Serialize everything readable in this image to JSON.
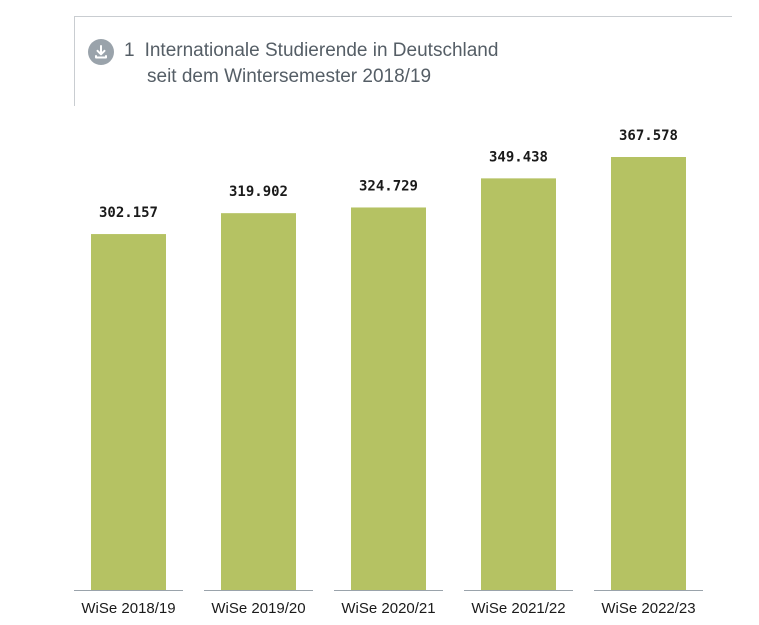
{
  "header": {
    "number": "1",
    "title_line1": "Internationale Studierende in Deutschland",
    "title_line2": "seit dem Wintersemester 2018/19",
    "icon": "download-icon"
  },
  "colors": {
    "bar": "#b5c263",
    "baseline": "#9aa3ab",
    "icon_bg": "#9aa3ab",
    "title": "#555e66"
  },
  "chart_data": {
    "type": "bar",
    "title": "Internationale Studierende in Deutschland seit dem Wintersemester 2018/19",
    "categories": [
      "WiSe 2018/19",
      "WiSe 2019/20",
      "WiSe 2020/21",
      "WiSe 2021/22",
      "WiSe 2022/23"
    ],
    "values": [
      302157,
      319902,
      324729,
      349438,
      367578
    ],
    "value_labels": [
      "302.157",
      "319.902",
      "324.729",
      "349.438",
      "367.578"
    ],
    "xlabel": "",
    "ylabel": "",
    "ylim": [
      0,
      367578
    ],
    "grid": false,
    "legend": "none"
  }
}
